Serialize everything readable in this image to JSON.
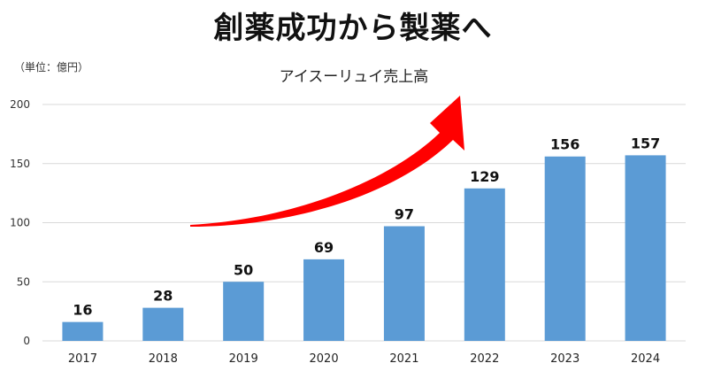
{
  "headline": "創薬成功から製薬へ",
  "chart_data": {
    "type": "bar",
    "title": "アイスーリュイ売上高",
    "unit_label": "（単位：億円）",
    "categories": [
      "2017",
      "2018",
      "2019",
      "2020",
      "2021",
      "2022",
      "2023",
      "2024"
    ],
    "values": [
      16,
      28,
      50,
      69,
      97,
      129,
      156,
      157
    ],
    "data_labels": [
      "16",
      "28",
      "50",
      "69",
      "97",
      "129",
      "156",
      "157"
    ],
    "y_ticks": [
      0,
      50,
      100,
      150,
      200
    ],
    "y_tick_labels": [
      "0",
      "50",
      "100",
      "150",
      "200"
    ],
    "ylim": [
      0,
      200
    ],
    "grid": true,
    "colors": {
      "bar": "#5b9bd5",
      "arrow": "#ff0000",
      "grid": "#d9d9d9"
    }
  }
}
